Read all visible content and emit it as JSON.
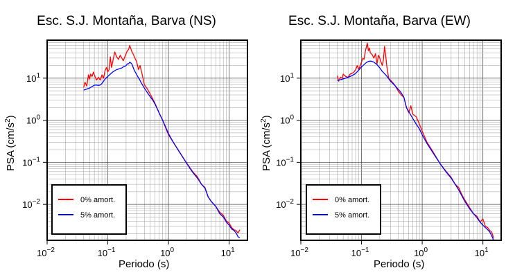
{
  "chart_data": [
    {
      "type": "line",
      "title": "Esc. S.J. Montaña, Barva (NS)",
      "xlabel": "Periodo (s)",
      "ylabel_main": "PSA (cm/s",
      "ylabel_sup": "2",
      "ylabel_end": ")",
      "xscale": "log",
      "yscale": "log",
      "xlim": [
        0.01,
        20
      ],
      "ylim": [
        0.0014,
        80
      ],
      "grid": true,
      "legend_position": "bottom-left",
      "xticks": [
        {
          "base": "10",
          "exp": "−2"
        },
        {
          "base": "10",
          "exp": "−1"
        },
        {
          "base": "10",
          "exp": "0"
        },
        {
          "base": "10",
          "exp": "1"
        }
      ],
      "yticks": [
        {
          "base": "10",
          "exp": "−2"
        },
        {
          "base": "10",
          "exp": "−1"
        },
        {
          "base": "10",
          "exp": "0"
        },
        {
          "base": "10",
          "exp": "1"
        }
      ],
      "series": [
        {
          "name": "0% amort.",
          "color": "#ff0000",
          "x": [
            0.04,
            0.042,
            0.045,
            0.048,
            0.05,
            0.052,
            0.055,
            0.058,
            0.06,
            0.065,
            0.07,
            0.075,
            0.08,
            0.085,
            0.09,
            0.095,
            0.1,
            0.105,
            0.11,
            0.115,
            0.12,
            0.13,
            0.14,
            0.15,
            0.16,
            0.17,
            0.18,
            0.19,
            0.2,
            0.21,
            0.22,
            0.23,
            0.24,
            0.25,
            0.26,
            0.28,
            0.3,
            0.32,
            0.34,
            0.36,
            0.38,
            0.4,
            0.45,
            0.5,
            0.55,
            0.6,
            0.7,
            0.8,
            0.9,
            1.0,
            1.2,
            1.5,
            2.0,
            2.5,
            3.0,
            3.5,
            4.0,
            4.5,
            5.0,
            6.0,
            7.0,
            8.0,
            9.0,
            10.0,
            11.0,
            12.0,
            13.0,
            14.0,
            15.0
          ],
          "y": [
            6.0,
            8.0,
            6.5,
            12.0,
            9.5,
            12.5,
            11.0,
            14.0,
            12.0,
            9.0,
            10.5,
            9.0,
            12.0,
            10.0,
            15.0,
            18.0,
            14.0,
            16.0,
            32.0,
            18.0,
            24.0,
            42.0,
            32.0,
            28.0,
            35.0,
            30.0,
            26.0,
            32.0,
            38.0,
            45.0,
            48.0,
            60.0,
            50.0,
            42.0,
            38.0,
            30.0,
            24.0,
            16.0,
            20.0,
            14.0,
            10.0,
            7.0,
            5.5,
            4.2,
            3.2,
            2.5,
            1.5,
            1.0,
            0.65,
            0.45,
            0.3,
            0.18,
            0.095,
            0.06,
            0.045,
            0.03,
            0.025,
            0.015,
            0.012,
            0.009,
            0.0065,
            0.0055,
            0.004,
            0.0036,
            0.0028,
            0.0025,
            0.0024,
            0.0021,
            0.0025
          ]
        },
        {
          "name": "5% amort.",
          "color": "#0000ff",
          "x": [
            0.04,
            0.045,
            0.05,
            0.055,
            0.06,
            0.065,
            0.07,
            0.075,
            0.08,
            0.09,
            0.1,
            0.11,
            0.12,
            0.13,
            0.14,
            0.15,
            0.16,
            0.17,
            0.18,
            0.19,
            0.2,
            0.21,
            0.22,
            0.23,
            0.24,
            0.25,
            0.27,
            0.3,
            0.33,
            0.36,
            0.4,
            0.45,
            0.5,
            0.55,
            0.6,
            0.7,
            0.8,
            0.9,
            1.0,
            1.2,
            1.5,
            2.0,
            2.5,
            3.0,
            3.5,
            4.0,
            4.5,
            5.0,
            6.0,
            7.0,
            8.0,
            9.0,
            10.0,
            11.0,
            12.0,
            13.0,
            14.0,
            15.0
          ],
          "y": [
            5.2,
            5.5,
            5.8,
            6.3,
            6.8,
            6.9,
            6.7,
            6.9,
            7.5,
            9.5,
            11.0,
            12.5,
            14.0,
            15.0,
            16.0,
            16.5,
            17.0,
            17.5,
            18.5,
            19.0,
            20.0,
            22.0,
            22.0,
            24.0,
            23.0,
            21.5,
            16.0,
            12.0,
            9.5,
            7.5,
            5.8,
            4.5,
            3.6,
            3.0,
            2.4,
            1.5,
            1.0,
            0.68,
            0.48,
            0.3,
            0.18,
            0.093,
            0.058,
            0.042,
            0.03,
            0.024,
            0.015,
            0.012,
            0.009,
            0.006,
            0.005,
            0.0038,
            0.0032,
            0.0026,
            0.0024,
            0.0021,
            0.0017,
            0.0016
          ]
        }
      ]
    },
    {
      "type": "line",
      "title": "Esc. S.J. Montaña, Barva (EW)",
      "xlabel": "Periodo (s)",
      "ylabel_main": "PSA (cm/s",
      "ylabel_sup": "2",
      "ylabel_end": ")",
      "xscale": "log",
      "yscale": "log",
      "xlim": [
        0.01,
        20
      ],
      "ylim": [
        0.0014,
        80
      ],
      "grid": true,
      "legend_position": "bottom-left",
      "xticks": [
        {
          "base": "10",
          "exp": "−2"
        },
        {
          "base": "10",
          "exp": "−1"
        },
        {
          "base": "10",
          "exp": "0"
        },
        {
          "base": "10",
          "exp": "1"
        }
      ],
      "yticks": [
        {
          "base": "10",
          "exp": "−2"
        },
        {
          "base": "10",
          "exp": "−1"
        },
        {
          "base": "10",
          "exp": "0"
        },
        {
          "base": "10",
          "exp": "1"
        }
      ],
      "series": [
        {
          "name": "0% amort.",
          "color": "#ff0000",
          "x": [
            0.04,
            0.042,
            0.045,
            0.048,
            0.05,
            0.055,
            0.06,
            0.065,
            0.07,
            0.075,
            0.08,
            0.085,
            0.09,
            0.1,
            0.105,
            0.11,
            0.115,
            0.12,
            0.125,
            0.13,
            0.135,
            0.14,
            0.15,
            0.16,
            0.17,
            0.18,
            0.19,
            0.2,
            0.21,
            0.22,
            0.23,
            0.24,
            0.25,
            0.26,
            0.28,
            0.3,
            0.35,
            0.4,
            0.45,
            0.5,
            0.55,
            0.6,
            0.65,
            0.7,
            0.8,
            0.9,
            1.0,
            1.2,
            1.5,
            2.0,
            2.5,
            3.0,
            3.5,
            4.0,
            4.5,
            5.0,
            6.0,
            7.0,
            8.0,
            9.0,
            10.0,
            11.0,
            12.0,
            13.0,
            14.0,
            15.0
          ],
          "y": [
            11.5,
            8.5,
            10.5,
            10.0,
            12.5,
            11.0,
            10.5,
            12.5,
            13.0,
            14.0,
            16.0,
            20.0,
            16.0,
            24.0,
            30.0,
            28.0,
            42.0,
            55.0,
            68.0,
            45.0,
            52.0,
            40.0,
            36.0,
            30.0,
            38.0,
            22.0,
            35.0,
            30.0,
            24.0,
            20.0,
            28.0,
            57.0,
            35.0,
            20.0,
            10.0,
            9.0,
            7.0,
            5.0,
            4.0,
            3.5,
            2.0,
            1.5,
            2.2,
            1.4,
            1.2,
            0.8,
            0.55,
            0.3,
            0.18,
            0.09,
            0.06,
            0.044,
            0.03,
            0.025,
            0.017,
            0.013,
            0.0085,
            0.006,
            0.0052,
            0.0038,
            0.0045,
            0.003,
            0.0028,
            0.0024,
            0.0022,
            0.0016
          ]
        },
        {
          "name": "5% amort.",
          "color": "#0000ff",
          "x": [
            0.04,
            0.045,
            0.05,
            0.055,
            0.06,
            0.07,
            0.08,
            0.09,
            0.1,
            0.11,
            0.12,
            0.13,
            0.14,
            0.15,
            0.16,
            0.17,
            0.18,
            0.2,
            0.22,
            0.25,
            0.27,
            0.3,
            0.35,
            0.4,
            0.45,
            0.5,
            0.55,
            0.6,
            0.7,
            0.8,
            0.9,
            1.0,
            1.2,
            1.5,
            2.0,
            2.5,
            3.0,
            3.5,
            4.0,
            4.5,
            5.0,
            6.0,
            7.0,
            8.0,
            9.0,
            10.0,
            11.0,
            12.0,
            13.0,
            14.0,
            15.0
          ],
          "y": [
            8.8,
            9.2,
            9.6,
            10.0,
            10.5,
            11.5,
            13.0,
            15.5,
            18.5,
            21.0,
            23.5,
            25.0,
            25.5,
            25.0,
            24.0,
            22.5,
            21.0,
            17.5,
            14.5,
            12.0,
            10.5,
            8.5,
            6.8,
            5.5,
            4.5,
            3.5,
            2.0,
            1.6,
            1.1,
            0.8,
            0.62,
            0.45,
            0.28,
            0.17,
            0.09,
            0.058,
            0.042,
            0.03,
            0.022,
            0.016,
            0.012,
            0.008,
            0.006,
            0.0048,
            0.0038,
            0.0032,
            0.0028,
            0.0025,
            0.0022,
            0.0018,
            0.0014
          ]
        }
      ]
    }
  ]
}
